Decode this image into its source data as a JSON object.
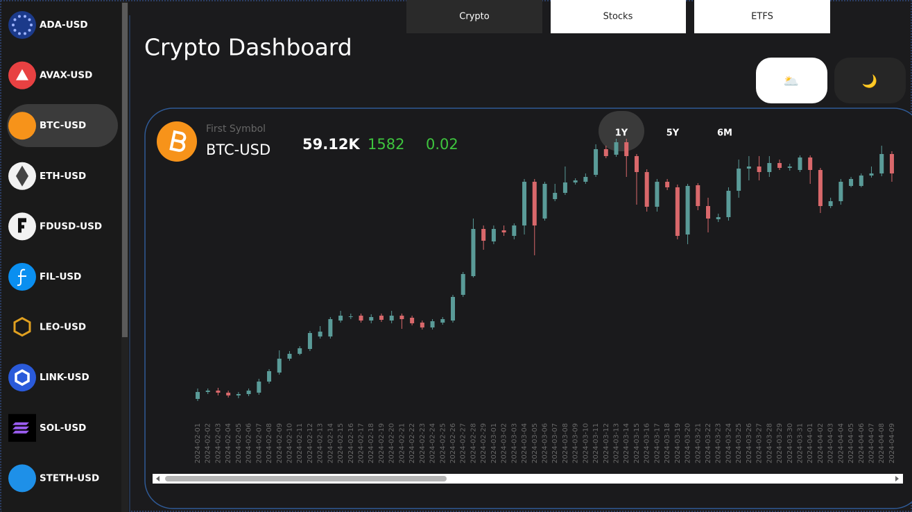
{
  "sidebar": {
    "items": [
      "ADA-USD",
      "AVAX-USD",
      "BTC-USD",
      "ETH-USD",
      "FDUSD-USD",
      "FIL-USD",
      "LEO-USD",
      "LINK-USD",
      "SOL-USD",
      "STETH-USD"
    ]
  },
  "tabs": [
    "Crypto",
    "Stocks",
    "ETFS"
  ],
  "header": {
    "title": "Crypto Dashboard"
  },
  "theme_icons": [
    "🌥️",
    "🌙"
  ],
  "card": {
    "subtitle": "First Symbol",
    "symbol": "BTC-USD",
    "price": "59.12K",
    "change": 1582,
    "change_pct": 0.02,
    "ranges": [
      "1Y",
      "5Y",
      "6M"
    ]
  },
  "chart_data": {
    "type": "candlestick",
    "x": [
      "2024-02-01",
      "2024-02-02",
      "2024-02-03",
      "2024-02-04",
      "2024-02-05",
      "2024-02-06",
      "2024-02-07",
      "2024-02-08",
      "2024-02-09",
      "2024-02-10",
      "2024-02-11",
      "2024-02-12",
      "2024-02-13",
      "2024-02-14",
      "2024-02-15",
      "2024-02-16",
      "2024-02-17",
      "2024-02-18",
      "2024-02-19",
      "2024-02-20",
      "2024-02-21",
      "2024-02-22",
      "2024-02-23",
      "2024-02-24",
      "2024-02-25",
      "2024-02-26",
      "2024-02-27",
      "2024-02-28",
      "2024-02-29",
      "2024-03-01",
      "2024-03-02",
      "2024-03-03",
      "2024-03-04",
      "2024-03-05",
      "2024-03-06",
      "2024-03-07",
      "2024-03-08",
      "2024-03-09",
      "2024-03-10",
      "2024-03-11",
      "2024-03-12",
      "2024-03-13",
      "2024-03-14",
      "2024-03-15",
      "2024-03-16",
      "2024-03-17",
      "2024-03-18",
      "2024-03-19",
      "2024-03-20",
      "2024-03-21",
      "2024-03-22",
      "2024-03-23",
      "2024-03-24",
      "2024-03-25",
      "2024-03-26",
      "2024-03-27",
      "2024-03-28",
      "2024-03-29",
      "2024-03-30",
      "2024-03-31",
      "2024-04-01",
      "2024-04-02",
      "2024-04-03",
      "2024-04-04",
      "2024-04-05",
      "2024-04-06",
      "2024-04-07",
      "2024-04-08",
      "2024-04-09"
    ],
    "open": [
      42600,
      43400,
      43560,
      43320,
      43000,
      43160,
      43320,
      44600,
      45640,
      47240,
      47800,
      48360,
      49800,
      49800,
      51640,
      52040,
      52200,
      51640,
      52200,
      51640,
      52200,
      51960,
      51400,
      50840,
      51400,
      51640,
      54600,
      56760,
      62200,
      60760,
      62040,
      61400,
      62600,
      67640,
      63400,
      65640,
      66360,
      67560,
      67640,
      68440,
      71400,
      70760,
      72200,
      70600,
      68760,
      64760,
      67640,
      67000,
      61560,
      67240,
      64840,
      63320,
      63560,
      66600,
      69160,
      69400,
      68760,
      69800,
      69240,
      69000,
      70440,
      69000,
      64840,
      65400,
      67160,
      67160,
      68360,
      68600,
      70840
    ],
    "high": [
      43800,
      43800,
      43880,
      43560,
      43400,
      43800,
      44920,
      46040,
      48200,
      48120,
      48680,
      50440,
      51000,
      52040,
      52760,
      52440,
      52440,
      52360,
      52440,
      52760,
      52440,
      52200,
      51640,
      51800,
      52040,
      54600,
      57240,
      63400,
      62600,
      62600,
      62600,
      62840,
      67960,
      67960,
      67640,
      67400,
      69400,
      68040,
      68600,
      71960,
      71800,
      72600,
      72600,
      70840,
      69080,
      67960,
      67960,
      67320,
      67400,
      67480,
      65800,
      63960,
      67000,
      70200,
      70600,
      70600,
      70600,
      70200,
      69720,
      70680,
      70680,
      69240,
      65800,
      67960,
      68200,
      68600,
      69400,
      71800,
      71160
    ],
    "low": [
      42360,
      43160,
      43000,
      42760,
      42680,
      42920,
      43080,
      44360,
      45400,
      47000,
      47640,
      48120,
      49560,
      49560,
      51400,
      51800,
      51400,
      51320,
      51480,
      51320,
      50680,
      51080,
      50600,
      50600,
      51160,
      51400,
      54360,
      56600,
      59800,
      60440,
      61400,
      61000,
      61560,
      59160,
      63160,
      65400,
      66120,
      67320,
      67400,
      68200,
      70360,
      70520,
      68200,
      65000,
      64200,
      64200,
      66680,
      61000,
      60440,
      64360,
      61800,
      63000,
      63160,
      65800,
      67800,
      67800,
      68200,
      69000,
      68920,
      68760,
      67400,
      64040,
      64600,
      65000,
      67000,
      67000,
      68120,
      68280,
      67640
    ],
    "close": [
      43400,
      43560,
      43320,
      43000,
      43160,
      43560,
      44600,
      45800,
      47240,
      47800,
      48440,
      50200,
      50360,
      51800,
      52200,
      52120,
      51640,
      52040,
      51720,
      52200,
      51800,
      51320,
      50840,
      51560,
      51800,
      54360,
      57000,
      62200,
      60840,
      62200,
      61800,
      62600,
      67640,
      62600,
      67400,
      66360,
      67560,
      67800,
      68200,
      71400,
      70600,
      72200,
      70600,
      68760,
      64760,
      67640,
      67000,
      61400,
      67160,
      64840,
      63400,
      63560,
      66600,
      69160,
      69400,
      68760,
      69800,
      69240,
      69400,
      70440,
      69000,
      64840,
      65400,
      67640,
      67960,
      68360,
      68600,
      70840,
      68600
    ],
    "up_color": "#5a9b98",
    "down_color": "#d9686b",
    "ylim": [
      40600,
      75800
    ]
  }
}
